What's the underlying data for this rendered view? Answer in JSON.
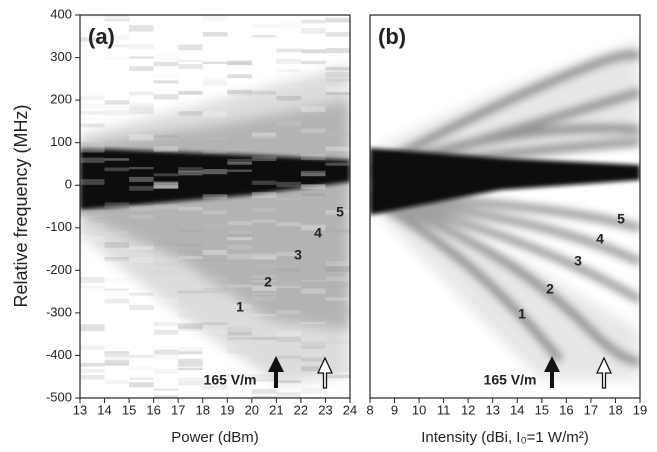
{
  "chart_data": [
    {
      "type": "heatmap",
      "panel_label": "(a)",
      "xlabel": "Power (dBm)",
      "ylabel": "Relative frequency (MHz)",
      "xlim": [
        13,
        24
      ],
      "xticks": [
        13,
        14,
        15,
        16,
        17,
        18,
        19,
        20,
        21,
        22,
        23,
        24
      ],
      "ylim": [
        -500,
        400
      ],
      "yticks": [
        -500,
        -400,
        -300,
        -200,
        -100,
        0,
        100,
        200,
        300,
        400
      ],
      "annotations": [
        "1",
        "2",
        "3",
        "4",
        "5",
        "165 V/m"
      ]
    },
    {
      "type": "heatmap",
      "panel_label": "(b)",
      "xlabel": "Intensity (dBi, I₀=1 W/m²)",
      "xlim": [
        8,
        19
      ],
      "xticks": [
        8,
        9,
        10,
        11,
        12,
        13,
        14,
        15,
        16,
        17,
        18,
        19
      ],
      "ylim": [
        -500,
        400
      ],
      "annotations": [
        "1",
        "2",
        "3",
        "4",
        "5",
        "165 V/m"
      ]
    }
  ]
}
